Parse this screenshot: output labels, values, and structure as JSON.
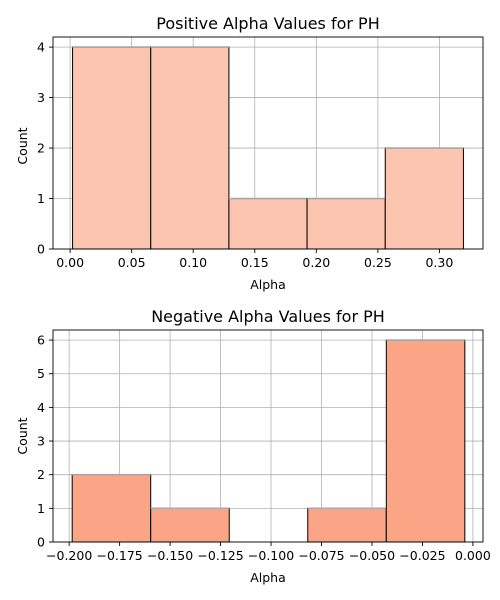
{
  "chart_data": [
    {
      "type": "bar",
      "title": "Positive Alpha Values for PH",
      "xlabel": "Alpha",
      "ylabel": "Count",
      "bin_edges": [
        0.002,
        0.0655,
        0.129,
        0.1925,
        0.256,
        0.3195
      ],
      "counts": [
        4,
        4,
        1,
        1,
        2
      ],
      "xlim": [
        -0.0139,
        0.3354
      ],
      "ylim": [
        0,
        4.2
      ],
      "xticks": [
        0.0,
        0.05,
        0.1,
        0.15,
        0.2,
        0.25,
        0.3
      ],
      "xtick_labels": [
        "0.00",
        "0.05",
        "0.10",
        "0.15",
        "0.20",
        "0.25",
        "0.30"
      ],
      "yticks": [
        0,
        1,
        2,
        3,
        4
      ],
      "ytick_labels": [
        "0",
        "1",
        "2",
        "3",
        "4"
      ],
      "grid": true,
      "bar_color": "#fcc5b0"
    },
    {
      "type": "bar",
      "title": "Negative Alpha Values for PH",
      "xlabel": "Alpha",
      "ylabel": "Count",
      "bin_edges": [
        -0.1985,
        -0.1596,
        -0.1207,
        -0.0818,
        -0.0429,
        -0.004
      ],
      "counts": [
        2,
        1,
        0,
        1,
        6
      ],
      "xlim": [
        -0.208,
        0.005
      ],
      "ylim": [
        0,
        6.3
      ],
      "xticks": [
        -0.2,
        -0.175,
        -0.15,
        -0.125,
        -0.1,
        -0.075,
        -0.05,
        -0.025,
        0.0
      ],
      "xtick_labels": [
        "−0.200",
        "−0.175",
        "−0.150",
        "−0.125",
        "−0.100",
        "−0.075",
        "−0.050",
        "−0.025",
        "0.000"
      ],
      "yticks": [
        0,
        1,
        2,
        3,
        4,
        5,
        6
      ],
      "ytick_labels": [
        "0",
        "1",
        "2",
        "3",
        "4",
        "5",
        "6"
      ],
      "grid": true,
      "bar_color": "#fca586"
    }
  ]
}
